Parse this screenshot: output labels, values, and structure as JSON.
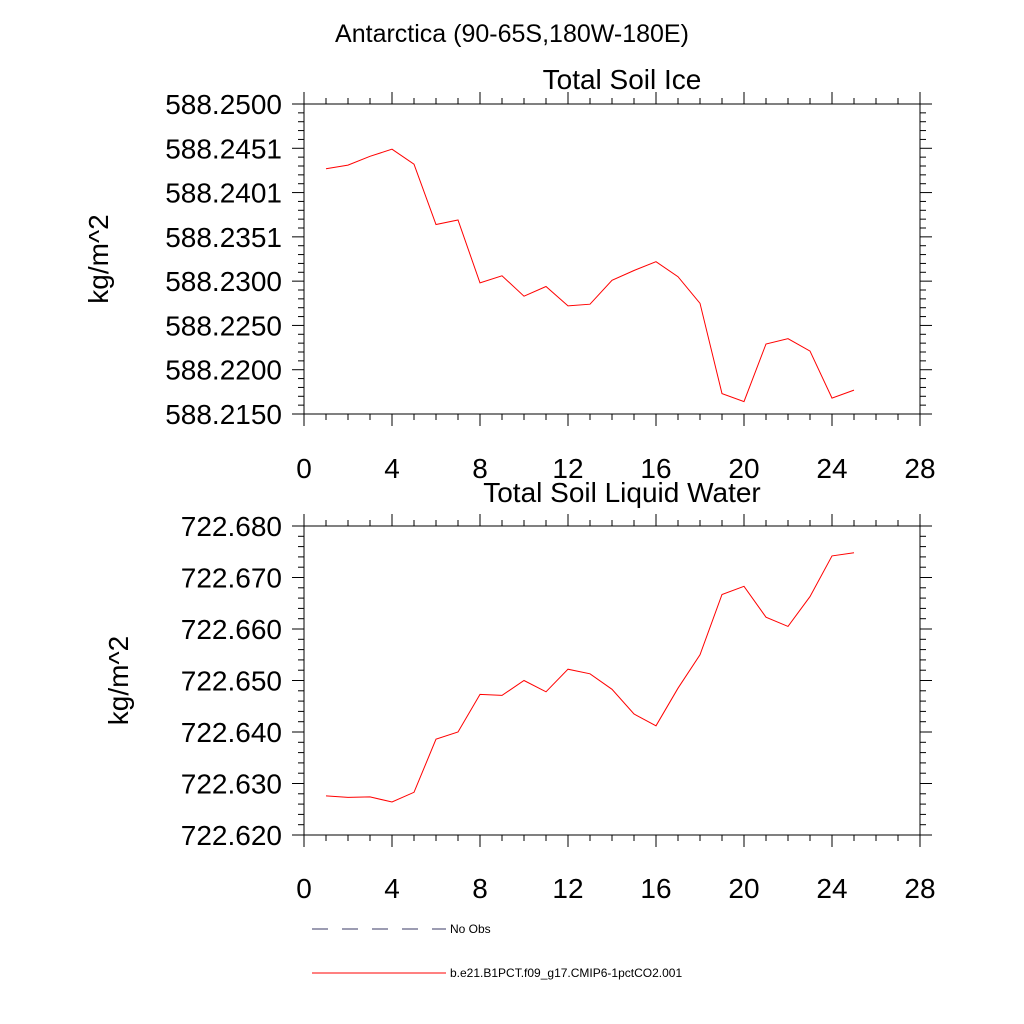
{
  "figure": {
    "title": "Antarctica (90-65S,180W-180E)"
  },
  "chart_data": [
    {
      "type": "line",
      "title": "Total Soil Ice",
      "xlabel": "",
      "ylabel": "kg/m^2",
      "xlim": [
        0,
        28
      ],
      "ylim": [
        588.215,
        588.25
      ],
      "xticks": [
        "0",
        "4",
        "8",
        "12",
        "16",
        "20",
        "24",
        "28"
      ],
      "yticks": [
        "588.2150",
        "588.2200",
        "588.2250",
        "588.2300",
        "588.2351",
        "588.2401",
        "588.2451",
        "588.2500"
      ],
      "series": [
        {
          "name": "b.e21.B1PCT.f09_g17.CMIP6-1pctCO2.001",
          "color": "#ff0000",
          "x": [
            1,
            2,
            3,
            4,
            5,
            6,
            7,
            8,
            9,
            10,
            11,
            12,
            13,
            14,
            15,
            16,
            17,
            18,
            19,
            20,
            21,
            22,
            23,
            24,
            25
          ],
          "values": [
            588.2427,
            588.2431,
            588.2441,
            588.2449,
            588.2432,
            588.2364,
            588.2369,
            588.2298,
            588.2306,
            588.2283,
            588.2294,
            588.2272,
            588.2274,
            588.2301,
            588.2312,
            588.2322,
            588.2305,
            588.2275,
            588.2173,
            588.2164,
            588.2229,
            588.2235,
            588.2221,
            588.2168,
            588.2177
          ]
        }
      ]
    },
    {
      "type": "line",
      "title": "Total Soil Liquid Water",
      "xlabel": "",
      "ylabel": "kg/m^2",
      "xlim": [
        0,
        28
      ],
      "ylim": [
        722.62,
        722.68
      ],
      "xticks": [
        "0",
        "4",
        "8",
        "12",
        "16",
        "20",
        "24",
        "28"
      ],
      "yticks": [
        "722.620",
        "722.630",
        "722.640",
        "722.650",
        "722.660",
        "722.670",
        "722.680"
      ],
      "series": [
        {
          "name": "b.e21.B1PCT.f09_g17.CMIP6-1pctCO2.001",
          "color": "#ff0000",
          "x": [
            1,
            2,
            3,
            4,
            5,
            6,
            7,
            8,
            9,
            10,
            11,
            12,
            13,
            14,
            15,
            16,
            17,
            18,
            19,
            20,
            21,
            22,
            23,
            24,
            25
          ],
          "values": [
            722.6276,
            722.6273,
            722.6274,
            722.6264,
            722.6283,
            722.6386,
            722.64,
            722.6473,
            722.6471,
            722.65,
            722.6478,
            722.6522,
            722.6513,
            722.6483,
            722.6435,
            722.6412,
            722.6485,
            722.655,
            722.6667,
            722.6683,
            722.6623,
            722.6605,
            722.6663,
            722.6742,
            722.6748
          ]
        }
      ]
    }
  ],
  "legend": {
    "placement": "bottom",
    "items": [
      {
        "label": "No Obs",
        "style": "dashed",
        "color": "#3a3a66"
      },
      {
        "label": "b.e21.B1PCT.f09_g17.CMIP6-1pctCO2.001",
        "style": "solid",
        "color": "#ff0000"
      }
    ]
  }
}
